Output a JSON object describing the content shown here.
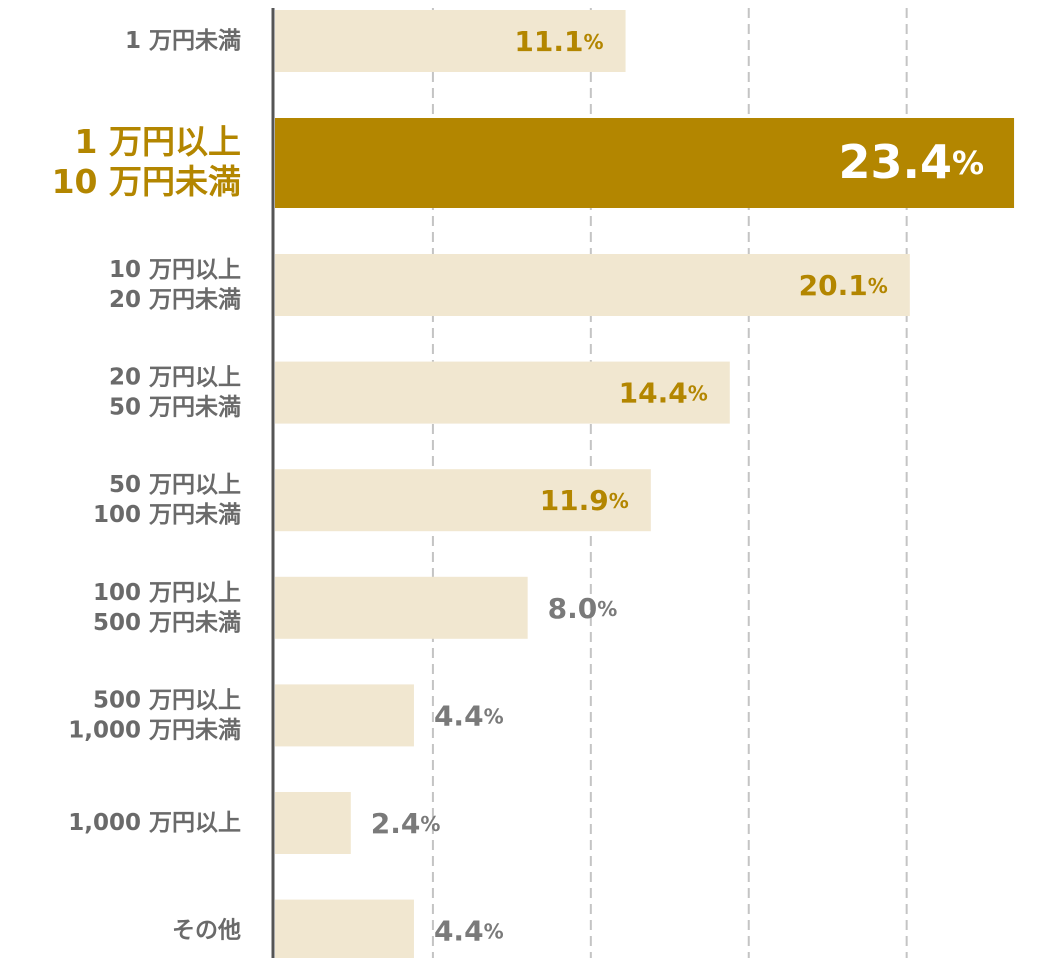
{
  "chart_data": {
    "type": "bar",
    "orientation": "horizontal",
    "categories": [
      "1 万円未満",
      "1 万円以上\n10 万円未満",
      "10 万円以上\n20 万円未満",
      "20 万円以上\n50 万円未満",
      "50 万円以上\n100 万円未満",
      "100 万円以上\n500 万円未満",
      "500 万円以上\n1,000 万円未満",
      "1,000 万円以上",
      "その他"
    ],
    "values": [
      11.1,
      23.4,
      20.1,
      14.4,
      11.9,
      8.0,
      4.4,
      2.4,
      4.4
    ],
    "value_labels": [
      "11.1%",
      "23.4%",
      "20.1%",
      "14.4%",
      "11.9%",
      "8.0%",
      "4.4%",
      "2.4%",
      "4.4%"
    ],
    "color": "#f1e7d0",
    "highlight_color": "#b38600",
    "highlight": 1,
    "xlim": [
      0,
      24
    ],
    "xticks": [
      5,
      10,
      15,
      20
    ],
    "grid": true
  }
}
